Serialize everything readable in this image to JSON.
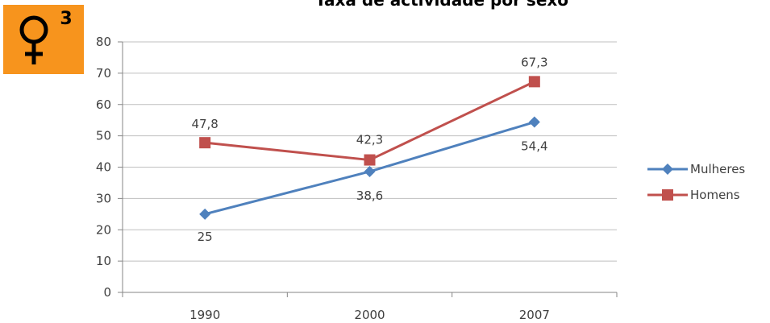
{
  "badge": {
    "number": "3",
    "background_color": "#f7941d",
    "icon": "female-symbol-icon"
  },
  "chart_data": {
    "type": "line",
    "title": "Taxa de actividade por sexo",
    "xlabel": "",
    "ylabel": "",
    "categories": [
      "1990",
      "2000",
      "2007"
    ],
    "ylim": [
      0,
      80
    ],
    "yticks": [
      0,
      10,
      20,
      30,
      40,
      50,
      60,
      70,
      80
    ],
    "grid": true,
    "legend_position": "right",
    "series": [
      {
        "name": "Mulheres",
        "values": [
          25,
          38.6,
          54.4
        ],
        "labels": [
          "25",
          "38,6",
          "54,4"
        ],
        "color": "#4f81bd",
        "marker": "diamond"
      },
      {
        "name": "Homens",
        "values": [
          47.8,
          42.3,
          67.3
        ],
        "labels": [
          "47,8",
          "42,3",
          "67,3"
        ],
        "color": "#c0504d",
        "marker": "square"
      }
    ]
  }
}
